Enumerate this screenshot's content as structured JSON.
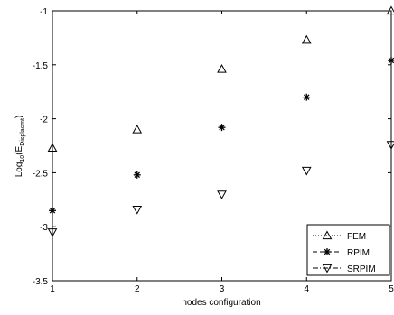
{
  "chart_data": {
    "type": "scatter",
    "title": "",
    "xlabel": "nodes configuration",
    "ylabel_main": "Log",
    "ylabel_sub": "10",
    "ylabel_rest": "(E",
    "ylabel_sub2": "Displacmt",
    "ylabel_end": ")",
    "xlim": [
      1,
      5
    ],
    "ylim": [
      -3.5,
      -1
    ],
    "xticks": [
      "1",
      "2",
      "3",
      "4",
      "5"
    ],
    "yticks": [
      "-1",
      "-1.5",
      "-2",
      "-2.5",
      "-3",
      "-3.5"
    ],
    "grid": false,
    "legend_position": "bottom-right",
    "x": [
      1,
      2,
      3,
      4,
      5
    ],
    "series": [
      {
        "name": "FEM",
        "marker": "triangle-up",
        "line": "dotted",
        "values": [
          -2.27,
          -2.1,
          -1.54,
          -1.27,
          -1.0
        ]
      },
      {
        "name": "RPIM",
        "marker": "star",
        "line": "dashed",
        "values": [
          -2.85,
          -2.52,
          -2.08,
          -1.8,
          -1.46
        ]
      },
      {
        "name": "SRPIM",
        "marker": "triangle-down",
        "line": "dash-dot",
        "values": [
          -3.05,
          -2.84,
          -2.7,
          -2.48,
          -2.24
        ]
      }
    ]
  }
}
